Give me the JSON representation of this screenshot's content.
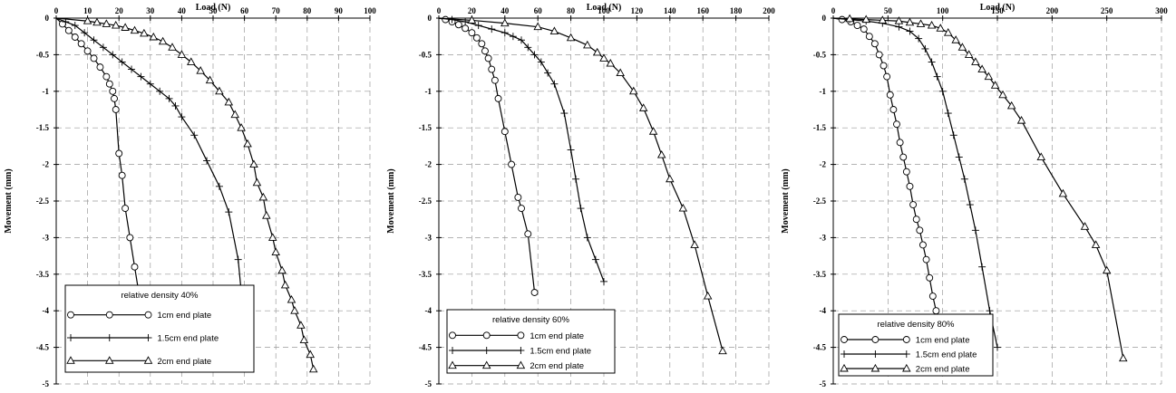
{
  "chart_data": [
    {
      "type": "line",
      "xlabel": "Load (N)",
      "ylabel": "Movement (mm)",
      "xlim": [
        0,
        100
      ],
      "ylim": [
        -5,
        0
      ],
      "xticks": [
        0,
        10,
        20,
        30,
        40,
        50,
        60,
        70,
        80,
        90,
        100
      ],
      "yticks": [
        0,
        -0.5,
        -1,
        -1.5,
        -2,
        -2.5,
        -3,
        -3.5,
        -4,
        -4.5,
        -5
      ],
      "grid": true,
      "legend_title": "relative density 40%",
      "legend_position": "bottom-left",
      "series": [
        {
          "name": "1cm end plate",
          "marker": "circle",
          "x": [
            0,
            2,
            4,
            6,
            8,
            10,
            12,
            14,
            16,
            17,
            18,
            18.5,
            19,
            20,
            21,
            22,
            23.5,
            25,
            26.5,
            28
          ],
          "y": [
            0,
            -0.08,
            -0.17,
            -0.26,
            -0.35,
            -0.45,
            -0.55,
            -0.67,
            -0.8,
            -0.9,
            -1.0,
            -1.1,
            -1.25,
            -1.85,
            -2.15,
            -2.6,
            -3.0,
            -3.4,
            -3.8,
            -4.2
          ]
        },
        {
          "name": "1.5cm end plate",
          "marker": "plus",
          "x": [
            0,
            3,
            6,
            9,
            12,
            15,
            18,
            21,
            24,
            27,
            30,
            33,
            36,
            38,
            40,
            44,
            48,
            52,
            55,
            58,
            60
          ],
          "y": [
            0,
            -0.05,
            -0.1,
            -0.2,
            -0.3,
            -0.4,
            -0.5,
            -0.6,
            -0.7,
            -0.8,
            -0.9,
            -1.0,
            -1.1,
            -1.2,
            -1.35,
            -1.6,
            -1.95,
            -2.3,
            -2.65,
            -3.3,
            -4.2
          ]
        },
        {
          "name": "2cm end plate",
          "marker": "triangle",
          "x": [
            0,
            10,
            13,
            16,
            19,
            22,
            25,
            28,
            31,
            34,
            37,
            40,
            43,
            46,
            49,
            52,
            55,
            57,
            59,
            61,
            63,
            64,
            66,
            67,
            69,
            70,
            72,
            73,
            75,
            76,
            78,
            79,
            81,
            82
          ],
          "y": [
            0,
            -0.04,
            -0.06,
            -0.08,
            -0.1,
            -0.13,
            -0.17,
            -0.21,
            -0.26,
            -0.32,
            -0.4,
            -0.5,
            -0.6,
            -0.72,
            -0.85,
            -1.0,
            -1.15,
            -1.32,
            -1.5,
            -1.72,
            -2.0,
            -2.25,
            -2.45,
            -2.7,
            -3.0,
            -3.2,
            -3.45,
            -3.65,
            -3.85,
            -4.0,
            -4.2,
            -4.4,
            -4.6,
            -4.8
          ]
        }
      ]
    },
    {
      "type": "line",
      "xlabel": "Load (N)",
      "ylabel": "Movement (mm)",
      "xlim": [
        0,
        200
      ],
      "ylim": [
        -5,
        0
      ],
      "xticks": [
        0,
        20,
        40,
        60,
        80,
        100,
        120,
        140,
        160,
        180,
        200
      ],
      "yticks": [
        0,
        -0.5,
        -1,
        -1.5,
        -2,
        -2.5,
        -3,
        -3.5,
        -4,
        -4.5,
        -5
      ],
      "grid": true,
      "legend_title": "relative density 60%",
      "legend_position": "bottom-left",
      "series": [
        {
          "name": "1cm end plate",
          "marker": "circle",
          "x": [
            0,
            4,
            8,
            12,
            16,
            20,
            23,
            26,
            28,
            30,
            32,
            34,
            36,
            40,
            44,
            48,
            50,
            54,
            58
          ],
          "y": [
            0,
            -0.02,
            -0.05,
            -0.09,
            -0.14,
            -0.2,
            -0.27,
            -0.35,
            -0.45,
            -0.55,
            -0.7,
            -0.85,
            -1.1,
            -1.55,
            -2.0,
            -2.45,
            -2.6,
            -2.95,
            -3.75
          ]
        },
        {
          "name": "1.5cm end plate",
          "marker": "plus",
          "x": [
            0,
            8,
            16,
            24,
            32,
            40,
            45,
            50,
            54,
            58,
            62,
            66,
            70,
            76,
            80,
            83,
            86,
            90,
            95,
            100
          ],
          "y": [
            0,
            -0.02,
            -0.05,
            -0.1,
            -0.15,
            -0.2,
            -0.25,
            -0.3,
            -0.4,
            -0.5,
            -0.6,
            -0.75,
            -0.9,
            -1.3,
            -1.8,
            -2.2,
            -2.6,
            -3.0,
            -3.3,
            -3.6
          ]
        },
        {
          "name": "2cm end plate",
          "marker": "triangle",
          "x": [
            0,
            20,
            40,
            60,
            70,
            80,
            90,
            96,
            100,
            104,
            110,
            118,
            124,
            130,
            135,
            140,
            148,
            155,
            163,
            172
          ],
          "y": [
            0,
            -0.03,
            -0.07,
            -0.12,
            -0.18,
            -0.27,
            -0.37,
            -0.47,
            -0.55,
            -0.62,
            -0.75,
            -1.0,
            -1.23,
            -1.55,
            -1.87,
            -2.2,
            -2.6,
            -3.1,
            -3.8,
            -4.55
          ]
        }
      ]
    },
    {
      "type": "line",
      "xlabel": "Load (N)",
      "ylabel": "Movement (mm)",
      "xlim": [
        0,
        300
      ],
      "ylim": [
        -5,
        0
      ],
      "xticks": [
        0,
        50,
        100,
        150,
        200,
        250,
        300
      ],
      "yticks": [
        0,
        -0.5,
        -1,
        -1.5,
        -2,
        -2.5,
        -3,
        -3.5,
        -4,
        -4.5,
        -5
      ],
      "grid": true,
      "legend_title": "relative density 80%",
      "legend_position": "bottom-left",
      "series": [
        {
          "name": "1cm end plate",
          "marker": "circle",
          "x": [
            0,
            8,
            16,
            22,
            28,
            33,
            38,
            42,
            46,
            49,
            52,
            55,
            58,
            61,
            64,
            67,
            70,
            73,
            76,
            79,
            82,
            85,
            88,
            91,
            94,
            97
          ],
          "y": [
            0,
            -0.02,
            -0.05,
            -0.1,
            -0.15,
            -0.25,
            -0.35,
            -0.5,
            -0.65,
            -0.8,
            -1.05,
            -1.25,
            -1.45,
            -1.7,
            -1.9,
            -2.1,
            -2.3,
            -2.55,
            -2.75,
            -2.9,
            -3.1,
            -3.3,
            -3.55,
            -3.8,
            -4.0,
            -4.2
          ]
        },
        {
          "name": "1.5cm end plate",
          "marker": "plus",
          "x": [
            0,
            15,
            30,
            45,
            60,
            70,
            78,
            84,
            90,
            95,
            100,
            105,
            110,
            115,
            120,
            125,
            130,
            136,
            143,
            150
          ],
          "y": [
            0,
            -0.02,
            -0.04,
            -0.07,
            -0.12,
            -0.18,
            -0.28,
            -0.42,
            -0.6,
            -0.8,
            -1.0,
            -1.3,
            -1.6,
            -1.9,
            -2.2,
            -2.55,
            -2.9,
            -3.4,
            -4.0,
            -4.5
          ]
        },
        {
          "name": "2cm end plate",
          "marker": "triangle",
          "x": [
            0,
            15,
            30,
            45,
            60,
            70,
            80,
            90,
            98,
            105,
            112,
            118,
            124,
            130,
            136,
            142,
            148,
            155,
            163,
            172,
            190,
            210,
            230,
            240,
            250,
            265
          ],
          "y": [
            0,
            -0.01,
            -0.02,
            -0.03,
            -0.04,
            -0.06,
            -0.08,
            -0.1,
            -0.14,
            -0.2,
            -0.3,
            -0.4,
            -0.5,
            -0.6,
            -0.7,
            -0.8,
            -0.92,
            -1.05,
            -1.2,
            -1.4,
            -1.9,
            -2.4,
            -2.85,
            -3.1,
            -3.45,
            -4.65
          ]
        }
      ]
    }
  ]
}
